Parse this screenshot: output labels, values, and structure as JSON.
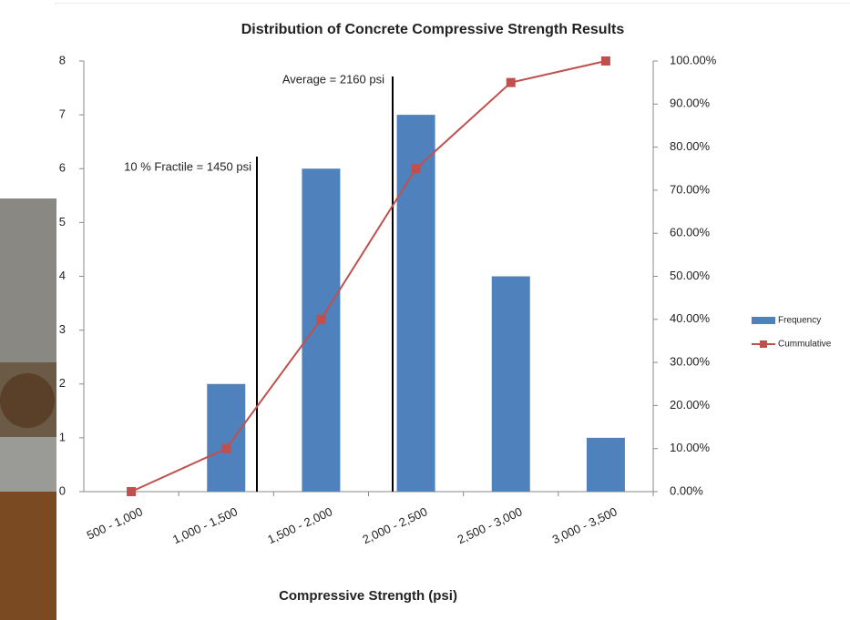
{
  "chart_data": {
    "type": "bar",
    "title": "Distribution of Concrete Compressive Strength Results",
    "x_label": "Compressive Strength (psi)",
    "categories": [
      "500 - 1,000",
      "1,000 - 1,500",
      "1,500 - 2,000",
      "2,000 - 2,500",
      "2,500 - 3,000",
      "3,000 - 3,500"
    ],
    "series": [
      {
        "name": "Frequency",
        "color": "#4f81bd",
        "values": [
          0,
          2,
          6,
          7,
          4,
          1
        ]
      },
      {
        "name": "Cummulative",
        "color": "#c0504d",
        "axis": "y2",
        "values": [
          0,
          10,
          40,
          75,
          95,
          100
        ]
      }
    ],
    "ylim": [
      0,
      8
    ],
    "yticks": [
      0,
      1,
      2,
      3,
      4,
      5,
      6,
      7,
      8
    ],
    "y2lim": [
      0,
      100
    ],
    "y2ticks": [
      {
        "value": 0,
        "label": "0.00%"
      },
      {
        "value": 10,
        "label": "10.00%"
      },
      {
        "value": 20,
        "label": "20.00%"
      },
      {
        "value": 30,
        "label": "30.00%"
      },
      {
        "value": 40,
        "label": "40.00%"
      },
      {
        "value": 50,
        "label": "50.00%"
      },
      {
        "value": 60,
        "label": "60.00%"
      },
      {
        "value": 70,
        "label": "70.00%"
      },
      {
        "value": 80,
        "label": "80.00%"
      },
      {
        "value": 90,
        "label": "90.00%"
      },
      {
        "value": 100,
        "label": "100.00%"
      }
    ],
    "annotations": [
      "10 % Fractile = 1450 psi",
      "Average = 2160 psi"
    ],
    "legend": "right"
  }
}
